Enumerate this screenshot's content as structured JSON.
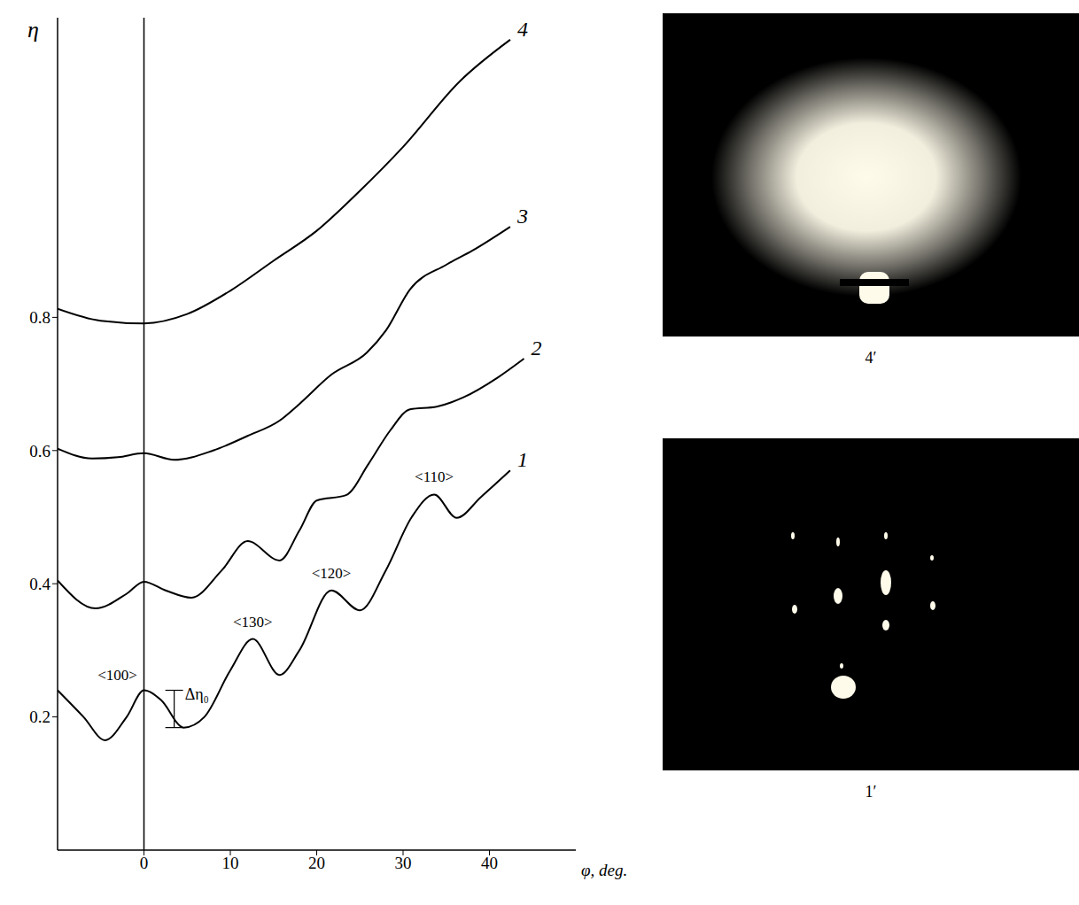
{
  "chart_data": {
    "type": "line",
    "x_label": "φ, deg.",
    "y_label": "η",
    "xlim": [
      -10,
      50
    ],
    "xticks": [
      0,
      10,
      20,
      30,
      40
    ],
    "ylim": [
      0,
      1.25
    ],
    "yticks": [
      0.2,
      0.4,
      0.6,
      0.8
    ],
    "grid": false,
    "series": [
      {
        "name": "1",
        "color": "#000000",
        "x": [
          -10,
          -7,
          -4.5,
          -2,
          0,
          2,
          4.6,
          7,
          10,
          12.6,
          15.7,
          18,
          21.7,
          25,
          28,
          31,
          33.6,
          36.2,
          39,
          42.4
        ],
        "values": [
          0.24,
          0.2,
          0.165,
          0.2,
          0.24,
          0.225,
          0.184,
          0.2,
          0.27,
          0.317,
          0.263,
          0.3,
          0.39,
          0.36,
          0.42,
          0.5,
          0.534,
          0.499,
          0.53,
          0.57
        ]
      },
      {
        "name": "2",
        "color": "#000000",
        "x": [
          -10,
          -5.6,
          -2,
          0,
          2.5,
          5.5,
          9,
          12,
          15.7,
          18,
          20,
          23.4,
          26,
          28.5,
          30.8,
          33.9,
          37,
          41,
          44
        ],
        "values": [
          0.405,
          0.363,
          0.385,
          0.403,
          0.39,
          0.379,
          0.42,
          0.464,
          0.435,
          0.48,
          0.525,
          0.533,
          0.58,
          0.63,
          0.662,
          0.666,
          0.68,
          0.71,
          0.738
        ]
      },
      {
        "name": "3",
        "color": "#000000",
        "x": [
          -10,
          -6,
          -3,
          0,
          3.5,
          8,
          12,
          15.7,
          18,
          21.7,
          25.8,
          28,
          30.8,
          35,
          38,
          42.4
        ],
        "values": [
          0.603,
          0.588,
          0.59,
          0.596,
          0.586,
          0.6,
          0.622,
          0.645,
          0.67,
          0.714,
          0.747,
          0.78,
          0.842,
          0.879,
          0.9,
          0.936
        ]
      },
      {
        "name": "4",
        "color": "#000000",
        "x": [
          -10,
          -5,
          0,
          5,
          10,
          15,
          20,
          25,
          30,
          36.6,
          42.4
        ],
        "values": [
          0.813,
          0.795,
          0.791,
          0.805,
          0.84,
          0.885,
          0.93,
          0.99,
          1.056,
          1.155,
          1.217
        ]
      }
    ],
    "annotations": [
      {
        "text": "<100>",
        "x": 0,
        "y": 0.24
      },
      {
        "text": "<130>",
        "x": 12.6,
        "y": 0.317
      },
      {
        "text": "<120>",
        "x": 21.7,
        "y": 0.39
      },
      {
        "text": "<110>",
        "x": 33.6,
        "y": 0.534
      },
      {
        "text": "Δη₀",
        "x": 3.5,
        "y": [
          0.184,
          0.24
        ]
      }
    ]
  },
  "images": [
    {
      "label": "4′"
    },
    {
      "label": "1′"
    }
  ]
}
